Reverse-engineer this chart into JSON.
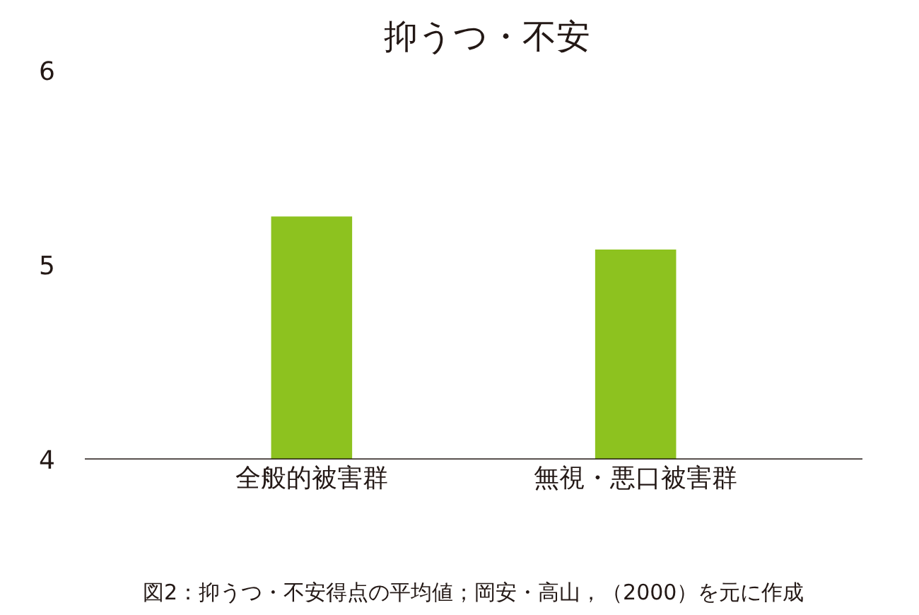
{
  "chart_data": {
    "type": "bar",
    "title": "抑うつ・不安",
    "categories": [
      "全般的被害群",
      "無視・悪口被害群"
    ],
    "values": [
      5.25,
      5.08
    ],
    "color": "#8dc21f",
    "ylim": [
      4,
      6
    ],
    "yticks": [
      4,
      5,
      6
    ],
    "annotations": [
      "図2：抑うつ・不安得点の平均値；岡安・高山，（2000）を元に作成"
    ]
  }
}
